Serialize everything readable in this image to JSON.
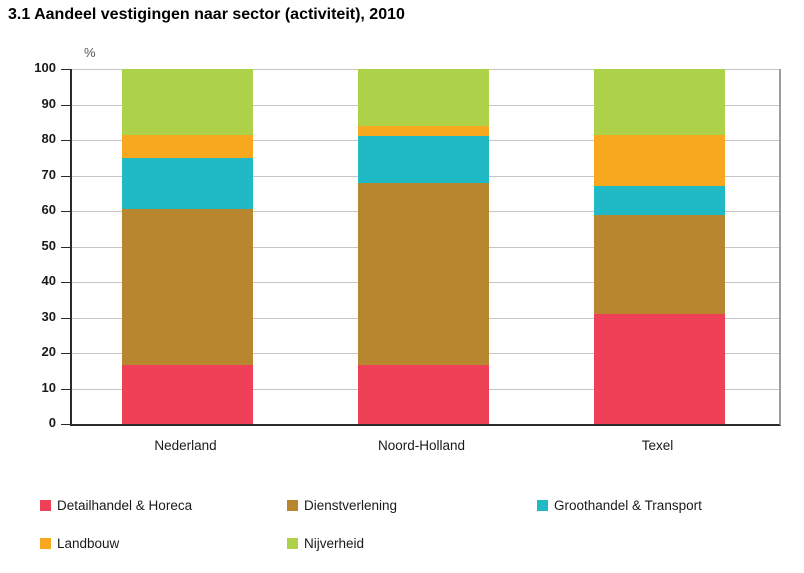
{
  "title": "3.1 Aandeel vestigingen naar sector (activiteit), 2010",
  "chart_data": {
    "type": "bar",
    "stacked": true,
    "title": "3.1 Aandeel vestigingen naar sector (activiteit), 2010",
    "ylabel": "%",
    "xlabel": "",
    "categories": [
      "Nederland",
      "Noord-Holland",
      "Texel"
    ],
    "series": [
      {
        "name": "Detailhandel & Horeca",
        "color": "#EE4056",
        "values": [
          16.5,
          16.5,
          31.0
        ]
      },
      {
        "name": "Dienstverlening",
        "color": "#B8862F",
        "values": [
          44.0,
          51.5,
          28.0
        ]
      },
      {
        "name": "Groothandel & Transport",
        "color": "#20BAC6",
        "values": [
          14.5,
          13.0,
          8.0
        ]
      },
      {
        "name": "Landbouw",
        "color": "#F7A81E",
        "values": [
          6.5,
          3.0,
          14.5
        ]
      },
      {
        "name": "Nijverheid",
        "color": "#ADD24A",
        "values": [
          18.5,
          16.0,
          18.5
        ]
      }
    ],
    "ylim": [
      0,
      100
    ],
    "yticks": [
      0,
      10,
      20,
      30,
      40,
      50,
      60,
      70,
      80,
      90,
      100
    ],
    "grid": true,
    "legend_position": "bottom"
  }
}
